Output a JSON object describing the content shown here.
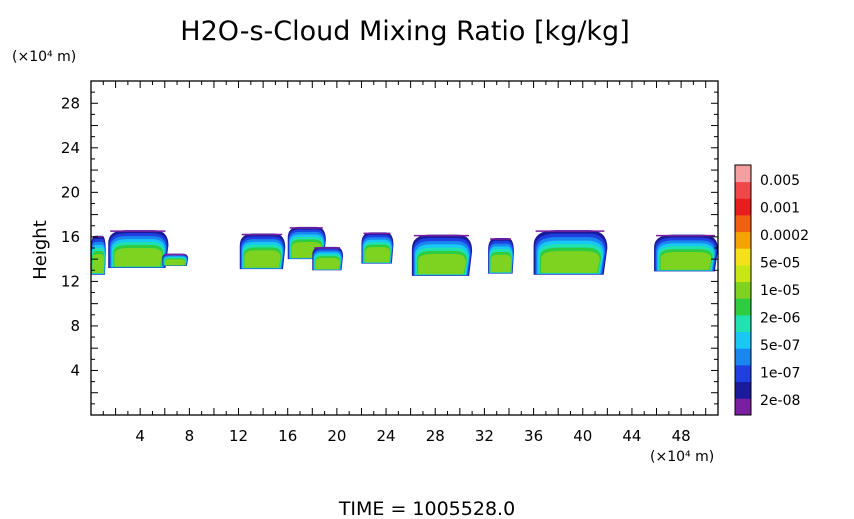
{
  "chart_data": {
    "type": "heatmap",
    "title": "H2O-s-Cloud Mixing Ratio [kg/kg]",
    "ylabel": "Height",
    "y_unit": "(×10⁴ m)",
    "x_unit": "(×10⁴ m)",
    "xlim": [
      0,
      51
    ],
    "ylim": [
      0,
      30
    ],
    "x_ticks": [
      "4",
      "8",
      "12",
      "16",
      "20",
      "24",
      "28",
      "32",
      "36",
      "40",
      "44",
      "48"
    ],
    "y_ticks": [
      "4",
      "8",
      "12",
      "16",
      "20",
      "24",
      "28"
    ],
    "footer": "TIME  =  1005528.0",
    "colorbar": {
      "labels": [
        "0.005",
        "0.001",
        "0.0002",
        "5e-05",
        "1e-05",
        "2e-06",
        "5e-07",
        "1e-07",
        "2e-08"
      ],
      "colors": [
        "#7a1fa0",
        "#1a1a9a",
        "#1f3fe0",
        "#1a86f0",
        "#19c7f5",
        "#1fe2b0",
        "#2ecc40",
        "#7ed321",
        "#c8e615",
        "#f5e11a",
        "#f5a300",
        "#f06010",
        "#e81e1e",
        "#f04848",
        "#f5a0a0"
      ]
    },
    "clouds": [
      {
        "x0": 0.0,
        "x1": 1.2,
        "base": 12.6,
        "top": 16.1
      },
      {
        "x0": 1.4,
        "x1": 6.3,
        "base": 13.2,
        "top": 16.6
      },
      {
        "x0": 5.8,
        "x1": 7.9,
        "base": 13.4,
        "top": 14.5
      },
      {
        "x0": 12.1,
        "x1": 15.8,
        "base": 13.1,
        "top": 16.3
      },
      {
        "x0": 16.0,
        "x1": 19.1,
        "base": 14.0,
        "top": 16.9
      },
      {
        "x0": 18.0,
        "x1": 20.5,
        "base": 13.0,
        "top": 15.1
      },
      {
        "x0": 22.0,
        "x1": 24.6,
        "base": 13.6,
        "top": 16.4
      },
      {
        "x0": 26.1,
        "x1": 31.0,
        "base": 12.5,
        "top": 16.2
      },
      {
        "x0": 32.3,
        "x1": 34.4,
        "base": 12.7,
        "top": 15.9
      },
      {
        "x0": 36.0,
        "x1": 42.0,
        "base": 12.6,
        "top": 16.6
      },
      {
        "x0": 45.8,
        "x1": 51.0,
        "base": 12.9,
        "top": 16.2
      }
    ]
  }
}
